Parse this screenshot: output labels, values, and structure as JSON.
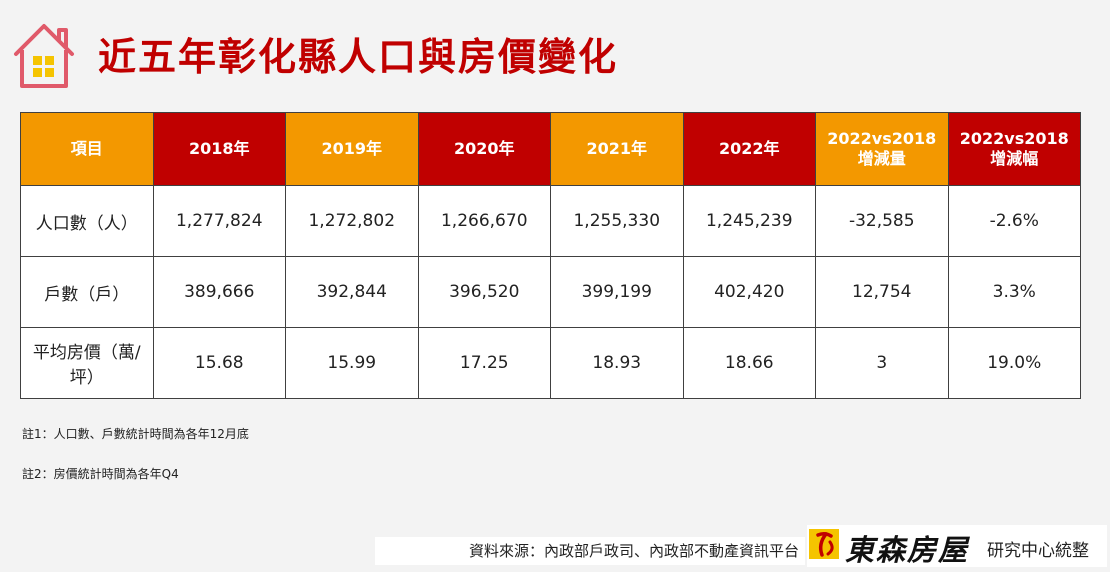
{
  "title": "近五年彰化縣人口與房價變化",
  "table": {
    "headers": [
      "項目",
      "2018年",
      "2019年",
      "2020年",
      "2021年",
      "2022年",
      "2022vs2018\n增減量",
      "2022vs2018\n增減幅"
    ],
    "rows": [
      {
        "label": "人口數（人）",
        "values": [
          "1,277,824",
          "1,272,802",
          "1,266,670",
          "1,255,330",
          "1,245,239"
        ],
        "change": "-32,585",
        "pct": "-2.6%"
      },
      {
        "label": "戶數（戶）",
        "values": [
          "389,666",
          "392,844",
          "396,520",
          "399,199",
          "402,420"
        ],
        "change": "12,754",
        "pct": "3.3%"
      },
      {
        "label": "平均房價（萬/坪）",
        "values": [
          "15.68",
          "15.99",
          "17.25",
          "18.93",
          "18.66"
        ],
        "change": "3",
        "pct": "19.0%"
      }
    ]
  },
  "notes": [
    "註1：人口數、戶數統計時間為各年12月底",
    "註2：房價統計時間為各年Q4"
  ],
  "source": "資料來源：內政部戶政司、內政部不動產資訊平台",
  "brand": {
    "name": "東森房屋",
    "subtitle": "研究中心統整"
  },
  "colors": {
    "orange": "#f39800",
    "red": "#c00000",
    "negative": "#1a9e4a",
    "positive": "#e02020"
  },
  "icons": [
    "house-icon",
    "brand-logo-icon"
  ]
}
